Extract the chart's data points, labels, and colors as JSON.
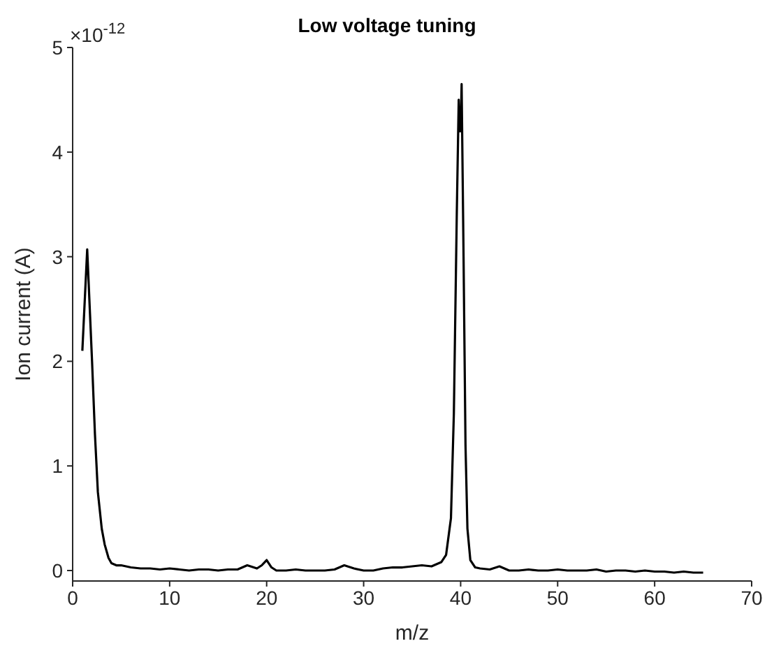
{
  "chart_data": {
    "type": "line",
    "title": "Low voltage tuning",
    "xlabel": "m/z",
    "ylabel": "Ion current (A)",
    "annotations": [
      "×10$^{-12}$"
    ],
    "xlim": [
      0,
      70
    ],
    "ylim": [
      -0.1,
      5
    ],
    "xticks": [
      0,
      10,
      20,
      30,
      40,
      50,
      60,
      70
    ],
    "yticks": [
      0,
      1,
      2,
      3,
      4,
      5
    ],
    "grid": false,
    "legend": false,
    "marker": "none",
    "line_style": "solid",
    "series": [
      {
        "color": "#000000",
        "x": [
          1,
          1.5,
          2,
          2.3,
          2.6,
          3,
          3.3,
          3.7,
          4,
          4.5,
          5,
          6,
          7,
          8,
          9,
          10,
          11,
          12,
          13,
          14,
          15,
          16,
          17,
          18,
          19,
          19.5,
          20,
          20.5,
          21,
          22,
          23,
          24,
          25,
          26,
          27,
          28,
          29,
          30,
          31,
          32,
          33,
          34,
          35,
          36,
          37,
          38,
          38.5,
          39,
          39.3,
          39.6,
          39.8,
          39.9,
          40,
          40.1,
          40.3,
          40.5,
          40.7,
          41,
          41.5,
          42,
          43,
          44,
          45,
          46,
          47,
          48,
          49,
          50,
          51,
          52,
          53,
          54,
          55,
          56,
          57,
          58,
          59,
          60,
          61,
          62,
          63,
          64,
          65
        ],
        "values": [
          2.1,
          3.07,
          2.0,
          1.3,
          0.75,
          0.4,
          0.25,
          0.12,
          0.07,
          0.05,
          0.05,
          0.03,
          0.02,
          0.02,
          0.01,
          0.02,
          0.01,
          0.0,
          0.01,
          0.01,
          0.0,
          0.01,
          0.01,
          0.05,
          0.02,
          0.05,
          0.1,
          0.03,
          0.0,
          0.0,
          0.01,
          0.0,
          0.0,
          0.0,
          0.01,
          0.05,
          0.02,
          0.0,
          0.0,
          0.02,
          0.03,
          0.03,
          0.04,
          0.05,
          0.04,
          0.08,
          0.15,
          0.5,
          1.5,
          3.4,
          4.5,
          4.2,
          4.2,
          4.65,
          3.0,
          1.2,
          0.4,
          0.1,
          0.03,
          0.02,
          0.01,
          0.04,
          0.0,
          0.0,
          0.01,
          0.0,
          0.0,
          0.01,
          0.0,
          0.0,
          0.0,
          0.01,
          -0.01,
          0.0,
          0.0,
          -0.01,
          0.0,
          -0.01,
          -0.01,
          -0.02,
          -0.01,
          -0.02,
          -0.02
        ]
      }
    ]
  }
}
